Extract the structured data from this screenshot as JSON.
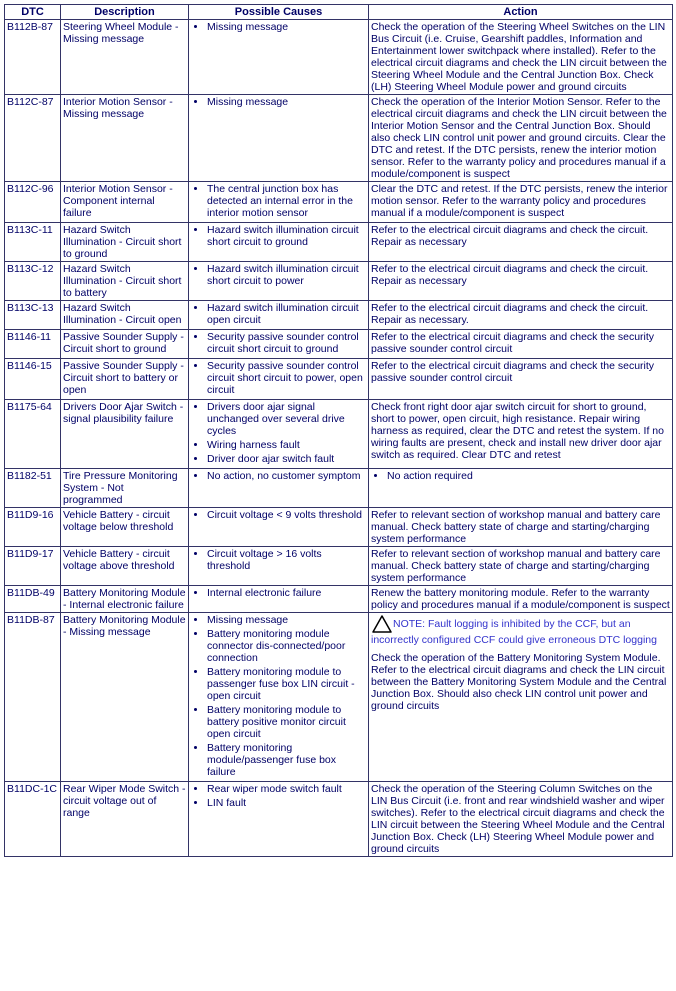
{
  "headers": {
    "dtc": "DTC",
    "desc": "Description",
    "cause": "Possible Causes",
    "action": "Action"
  },
  "rows": [
    {
      "dtc": "B112B-87",
      "desc": "Steering Wheel Module - Missing message",
      "causes": [
        "Missing message"
      ],
      "action": "Check the operation of the Steering Wheel Switches on the LIN Bus Circuit (i.e. Cruise, Gearshift paddles, Information and Entertainment lower switchpack where installed). Refer to the electrical circuit diagrams and check the LIN circuit between the Steering Wheel Module and the Central Junction Box. Check (LH) Steering Wheel Module power and ground circuits"
    },
    {
      "dtc": "B112C-87",
      "desc": "Interior Motion Sensor - Missing message",
      "causes": [
        "Missing message"
      ],
      "action": "Check the operation of the Interior Motion Sensor. Refer to the electrical circuit diagrams and check the LIN circuit between the Interior Motion Sensor and the Central Junction Box. Should also check LIN control unit power and ground circuits. Clear the DTC and retest. If the DTC persists, renew the interior motion sensor. Refer to the warranty policy and procedures manual if a module/component is suspect"
    },
    {
      "dtc": "B112C-96",
      "desc": "Interior Motion Sensor - Component internal failure",
      "causes": [
        "The central junction box has detected an internal error in the interior motion sensor"
      ],
      "action": "Clear the DTC and retest. If the DTC persists, renew the interior motion sensor. Refer to the warranty policy and procedures manual if a module/component is suspect"
    },
    {
      "dtc": "B113C-11",
      "desc": "Hazard Switch Illumination - Circuit short to ground",
      "causes": [
        "Hazard switch illumination circuit short circuit to ground"
      ],
      "action": "Refer to the electrical circuit diagrams and check the circuit. Repair as necessary"
    },
    {
      "dtc": "B113C-12",
      "desc": "Hazard Switch Illumination - Circuit short to battery",
      "causes": [
        "Hazard switch illumination circuit short circuit to power"
      ],
      "action": "Refer to the electrical circuit diagrams and check the circuit. Repair as necessary"
    },
    {
      "dtc": "B113C-13",
      "desc": "Hazard Switch Illumination - Circuit open",
      "causes": [
        "Hazard switch illumination circuit open circuit"
      ],
      "action": "Refer to the electrical circuit diagrams and check the circuit. Repair as necessary."
    },
    {
      "dtc": "B1146-11",
      "desc": "Passive Sounder Supply - Circuit short to ground",
      "causes": [
        "Security passive sounder control circuit short circuit to ground"
      ],
      "action": "Refer to the electrical circuit diagrams and check the security passive sounder control circuit"
    },
    {
      "dtc": "B1146-15",
      "desc": "Passive Sounder Supply - Circuit short to battery or open",
      "causes": [
        "Security passive sounder control circuit short circuit to power, open circuit"
      ],
      "action": "Refer to the electrical circuit diagrams and check the security passive sounder control circuit"
    },
    {
      "dtc": "B1175-64",
      "desc": "Drivers Door Ajar Switch - signal plausibility failure",
      "causes": [
        "Drivers door ajar signal unchanged over several drive cycles",
        "Wiring harness fault",
        "Driver door ajar switch fault"
      ],
      "action": "Check front right door ajar switch circuit for short to ground, short to power, open circuit, high resistance. Repair wiring harness as required, clear the DTC and retest the system. If no wiring faults are present, check and install new driver door ajar switch as required. Clear DTC and retest"
    },
    {
      "dtc": "B1182-51",
      "desc": "Tire Pressure Monitoring System - Not programmed",
      "causes": [
        "No action, no customer symptom"
      ],
      "action_list": [
        "No action required"
      ]
    },
    {
      "dtc": "B11D9-16",
      "desc": "Vehicle Battery - circuit voltage below threshold",
      "causes": [
        "Circuit voltage < 9 volts threshold"
      ],
      "action": "Refer to relevant section of workshop manual and battery care manual. Check battery state of charge and starting/charging system performance"
    },
    {
      "dtc": "B11D9-17",
      "desc": "Vehicle Battery - circuit voltage above threshold",
      "causes": [
        "Circuit voltage > 16 volts threshold"
      ],
      "action": "Refer to relevant section of workshop manual and battery care manual. Check battery state of charge and starting/charging system performance"
    },
    {
      "dtc": "B11DB-49",
      "desc": "Battery Monitoring Module - Internal electronic failure",
      "causes": [
        "Internal electronic failure"
      ],
      "action": "Renew the battery monitoring module. Refer to the warranty policy and procedures manual if a module/component is suspect"
    },
    {
      "dtc": "B11DB-87",
      "desc": "Battery Monitoring Module - Missing message",
      "causes": [
        "Missing message",
        "Battery monitoring module connector dis-connected/poor connection",
        "Battery monitoring module to passenger fuse box LIN circuit - open circuit",
        "Battery monitoring module to battery positive monitor circuit open circuit",
        "Battery monitoring module/passenger fuse box failure"
      ],
      "note": "NOTE: Fault logging is inhibited by the CCF, but an incorrectly configured CCF could give erroneous DTC logging",
      "action": "Check the operation of the Battery Monitoring System Module. Refer to the electrical circuit diagrams and check the LIN circuit between the Battery Monitoring System Module and the Central Junction Box. Should also check LIN control unit power and ground circuits"
    },
    {
      "dtc": "B11DC-1C",
      "desc": "Rear Wiper Mode Switch - circuit voltage out of range",
      "causes": [
        "Rear wiper mode switch fault",
        "LIN fault"
      ],
      "action": "Check the operation of the Steering Column Switches on the LIN Bus Circuit (i.e. front and rear windshield washer and wiper switches). Refer to the electrical circuit diagrams and check the LIN circuit between the Steering Wheel Module and the Central Junction Box. Check (LH) Steering Wheel Module power and ground circuits"
    }
  ]
}
